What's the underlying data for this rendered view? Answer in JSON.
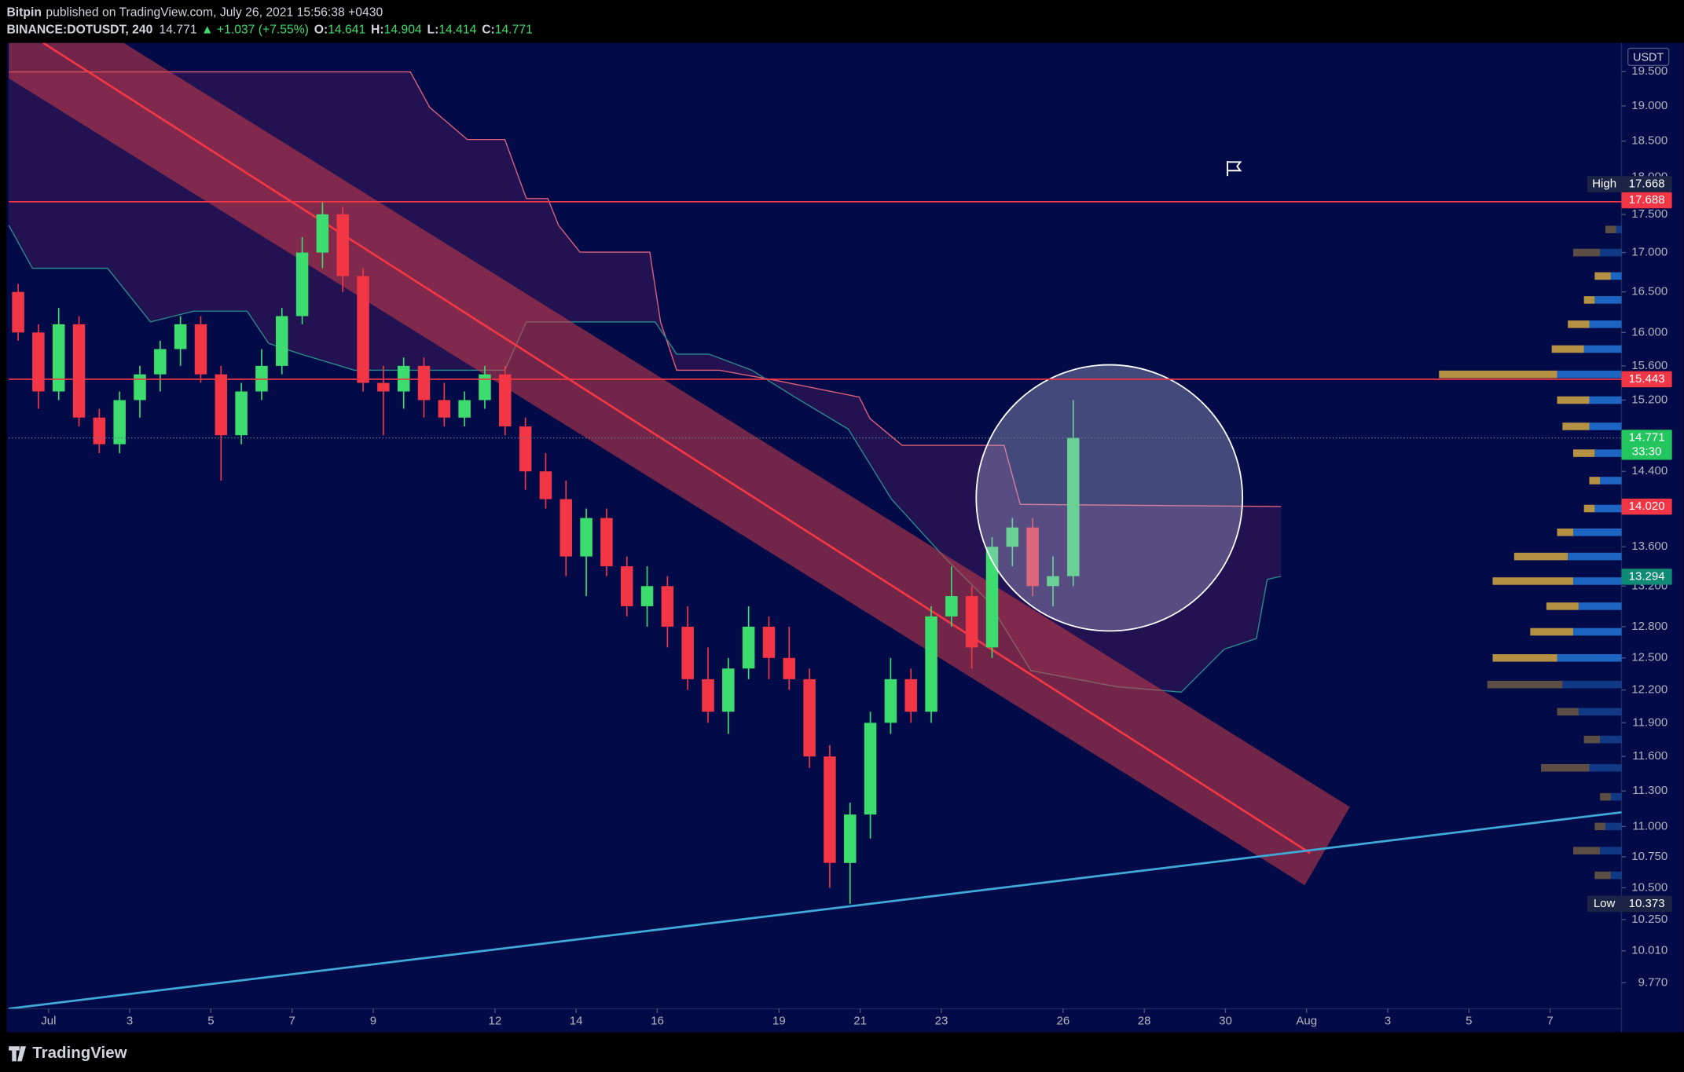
{
  "header": {
    "publisher": "Bitpin",
    "published": "published on TradingView.com, July 26, 2021 15:56:38 +0430"
  },
  "chart_data": {
    "type": "candlestick",
    "symbol": "BINANCE:DOTUSDT, 240",
    "last": 14.771,
    "change": "▲ +1.037 (+7.55%)",
    "ohlc": [
      {
        "label": "O:",
        "value": 14.641
      },
      {
        "label": "H:",
        "value": 14.904
      },
      {
        "label": "L:",
        "value": 14.414
      },
      {
        "label": "C:",
        "value": 14.771
      }
    ],
    "currency": "USDT",
    "up_color": "#3ddc6f",
    "down_color": "#f23645",
    "x": [
      -0.75,
      -0.25,
      0.25,
      0.75,
      1.25,
      1.75,
      2.25,
      2.75,
      3.25,
      3.75,
      4.25,
      4.75,
      5.25,
      5.75,
      6.25,
      6.75,
      7.25,
      7.75,
      8.25,
      8.75,
      9.25,
      9.75,
      10.25,
      10.75,
      11.25,
      11.75,
      12.25,
      12.75,
      13.25,
      13.75,
      14.25,
      14.75,
      15.25,
      15.75,
      16.25,
      16.75,
      17.25,
      17.75,
      18.25,
      18.75,
      19.25,
      19.75,
      20.25,
      20.75,
      21.25,
      21.75,
      22.25,
      22.75,
      23.25,
      23.75,
      24.25,
      24.75,
      25.25
    ],
    "open": [
      16.5,
      16.0,
      15.3,
      16.1,
      15.0,
      14.7,
      15.2,
      15.5,
      15.8,
      16.1,
      15.5,
      14.8,
      15.3,
      15.6,
      16.2,
      17.0,
      17.5,
      16.7,
      15.4,
      15.3,
      15.6,
      15.2,
      15.0,
      15.2,
      15.5,
      14.9,
      14.4,
      14.1,
      13.5,
      13.9,
      13.4,
      13.0,
      13.2,
      12.8,
      12.3,
      12.0,
      12.4,
      12.8,
      12.5,
      12.3,
      11.6,
      10.7,
      11.1,
      11.9,
      12.3,
      12.0,
      12.9,
      13.1,
      12.6,
      13.6,
      13.8,
      13.2,
      13.3
    ],
    "high": [
      16.6,
      16.1,
      16.3,
      16.2,
      15.1,
      15.3,
      15.6,
      15.9,
      16.2,
      16.2,
      15.6,
      15.4,
      15.8,
      16.3,
      17.2,
      17.668,
      17.6,
      16.8,
      15.6,
      15.7,
      15.7,
      15.4,
      15.3,
      15.6,
      15.6,
      15.0,
      14.6,
      14.3,
      14.0,
      14.0,
      13.5,
      13.4,
      13.3,
      13.0,
      12.6,
      12.5,
      13.0,
      12.9,
      12.8,
      12.4,
      11.7,
      11.2,
      12.0,
      12.5,
      12.4,
      13.0,
      13.4,
      13.2,
      13.7,
      13.9,
      13.9,
      13.5,
      15.2
    ],
    "low": [
      15.9,
      15.1,
      15.2,
      14.9,
      14.6,
      14.6,
      15.0,
      15.3,
      15.6,
      15.4,
      14.3,
      14.7,
      15.2,
      15.5,
      16.1,
      16.8,
      16.5,
      15.3,
      14.8,
      15.1,
      15.0,
      14.9,
      14.9,
      15.1,
      14.8,
      14.2,
      14.0,
      13.3,
      13.1,
      13.3,
      12.9,
      12.8,
      12.6,
      12.2,
      11.9,
      11.8,
      12.3,
      12.3,
      12.2,
      11.5,
      10.5,
      10.373,
      10.9,
      11.8,
      11.9,
      11.9,
      12.8,
      12.4,
      12.5,
      13.4,
      13.1,
      13.0,
      13.2
    ],
    "close": [
      16.0,
      15.3,
      16.1,
      15.0,
      14.7,
      15.2,
      15.5,
      15.8,
      16.1,
      15.5,
      14.8,
      15.3,
      15.6,
      16.2,
      17.0,
      17.5,
      16.7,
      15.4,
      15.3,
      15.6,
      15.2,
      15.0,
      15.2,
      15.5,
      14.9,
      14.4,
      14.1,
      13.5,
      13.9,
      13.4,
      13.0,
      13.2,
      12.8,
      12.3,
      12.0,
      12.4,
      12.8,
      12.5,
      12.3,
      11.6,
      10.7,
      11.1,
      11.9,
      12.3,
      12.0,
      12.9,
      13.1,
      12.6,
      13.6,
      13.8,
      13.2,
      13.3,
      14.771
    ],
    "log_scale": true,
    "ylim": [
      9.58,
      19.93
    ],
    "yticks": [
      {
        "value": 19.5,
        "label": "19.500"
      },
      {
        "value": 19,
        "label": "19.000"
      },
      {
        "value": 18.5,
        "label": "18.500"
      },
      {
        "value": 18,
        "label": "18.000"
      },
      {
        "value": 17.5,
        "label": "17.500"
      },
      {
        "value": 17,
        "label": "17.000"
      },
      {
        "value": 16.5,
        "label": "16.500"
      },
      {
        "value": 16,
        "label": "16.000"
      },
      {
        "value": 15.6,
        "label": "15.600"
      },
      {
        "value": 15.2,
        "label": "15.200"
      },
      {
        "value": 14.8,
        "label": "14.800"
      },
      {
        "value": 14.4,
        "label": "14.400"
      },
      {
        "value": 14,
        "label": "14.000"
      },
      {
        "value": 13.6,
        "label": "13.600"
      },
      {
        "value": 13.2,
        "label": "13.200"
      },
      {
        "value": 12.8,
        "label": "12.800"
      },
      {
        "value": 12.5,
        "label": "12.500"
      },
      {
        "value": 12.2,
        "label": "12.200"
      },
      {
        "value": 11.9,
        "label": "11.900"
      },
      {
        "value": 11.6,
        "label": "11.600"
      },
      {
        "value": 11.3,
        "label": "11.300"
      },
      {
        "value": 11,
        "label": "11.000"
      },
      {
        "value": 10.75,
        "label": "10.750"
      },
      {
        "value": 10.5,
        "label": "10.500"
      },
      {
        "value": 10.25,
        "label": "10.250"
      },
      {
        "value": 10.01,
        "label": "10.010"
      },
      {
        "value": 9.77,
        "label": "9.770"
      }
    ],
    "xlim": [
      -0.98,
      38.76
    ],
    "xticks": [
      {
        "value": 0,
        "label": "Jul"
      },
      {
        "value": 2,
        "label": "3"
      },
      {
        "value": 4,
        "label": "5"
      },
      {
        "value": 6,
        "label": "7"
      },
      {
        "value": 8,
        "label": "9"
      },
      {
        "value": 11,
        "label": "12"
      },
      {
        "value": 13,
        "label": "14"
      },
      {
        "value": 15,
        "label": "16"
      },
      {
        "value": 18,
        "label": "19"
      },
      {
        "value": 20,
        "label": "21"
      },
      {
        "value": 22,
        "label": "23"
      },
      {
        "value": 25,
        "label": "26"
      },
      {
        "value": 27,
        "label": "28"
      },
      {
        "value": 29,
        "label": "30"
      },
      {
        "value": 31,
        "label": "Aug"
      },
      {
        "value": 33,
        "label": "3"
      },
      {
        "value": 35,
        "label": "5"
      },
      {
        "value": 37,
        "label": "7"
      }
    ],
    "price_labels": [
      {
        "value": 17.688,
        "label": "17.688",
        "color": "#f23645"
      },
      {
        "value": 17.668,
        "label": "17.668",
        "tag": "High",
        "color": "#1c2446",
        "line": "#f23645"
      },
      {
        "value": 15.443,
        "label": "15.443",
        "color": "#f23645",
        "line": "#f23645"
      },
      {
        "value": 14.771,
        "label": "14.771",
        "color": "#22c55e",
        "countdown": "33:30",
        "dotted": "#5d7a8a"
      },
      {
        "value": 14.02,
        "label": "14.020",
        "color": "#f23645"
      },
      {
        "value": 13.294,
        "label": "13.294",
        "color": "#0f8a74"
      },
      {
        "value": 10.373,
        "label": "10.373",
        "tag": "Low",
        "color": "#1c2446"
      }
    ],
    "volume_profile": {
      "prices": [
        17.3,
        17.0,
        16.7,
        16.4,
        16.1,
        15.8,
        15.5,
        15.2,
        14.9,
        14.6,
        14.3,
        14.0,
        13.75,
        13.5,
        13.25,
        13.0,
        12.75,
        12.5,
        12.25,
        12.0,
        11.75,
        11.5,
        11.25,
        11.0,
        10.8,
        10.6
      ],
      "up": [
        5,
        20,
        10,
        25,
        30,
        35,
        60,
        30,
        30,
        25,
        20,
        25,
        45,
        50,
        45,
        40,
        45,
        60,
        55,
        40,
        20,
        30,
        10,
        15,
        20,
        10
      ],
      "down": [
        10,
        25,
        15,
        10,
        20,
        30,
        110,
        30,
        25,
        20,
        10,
        10,
        15,
        50,
        75,
        30,
        40,
        60,
        70,
        20,
        15,
        45,
        10,
        10,
        25,
        15
      ],
      "up_color": "#1f6fd0",
      "down_color": "#c9a043"
    }
  },
  "footer": {
    "brand": "TradingView"
  }
}
